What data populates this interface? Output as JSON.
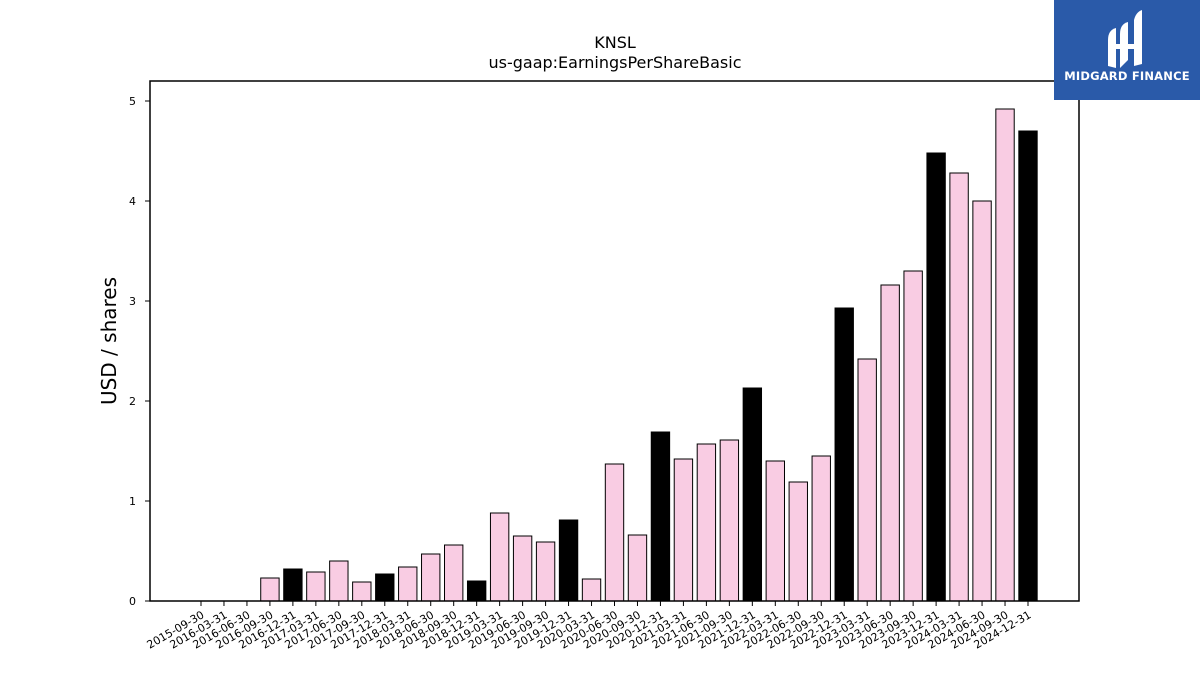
{
  "chart_data": {
    "type": "bar",
    "title": "KNSL",
    "subtitle": "us-gaap:EarningsPerShareBasic",
    "xlabel": "",
    "ylabel": "USD / shares",
    "ylim": [
      0,
      5.2
    ],
    "yticks": [
      0,
      1,
      2,
      3,
      4,
      5
    ],
    "grid": false,
    "categories": [
      "2015-09-30",
      "2016-03-31",
      "2016-06-30",
      "2016-09-30",
      "2016-12-31",
      "2017-03-31",
      "2017-06-30",
      "2017-09-30",
      "2017-12-31",
      "2018-03-31",
      "2018-06-30",
      "2018-09-30",
      "2018-12-31",
      "2019-03-31",
      "2019-06-30",
      "2019-09-30",
      "2019-12-31",
      "2020-03-31",
      "2020-06-30",
      "2020-09-30",
      "2020-12-31",
      "2021-03-31",
      "2021-06-30",
      "2021-09-30",
      "2021-12-31",
      "2022-03-31",
      "2022-06-30",
      "2022-09-30",
      "2022-12-31",
      "2023-03-31",
      "2023-06-30",
      "2023-09-30",
      "2023-12-31",
      "2024-03-31",
      "2024-06-30",
      "2024-09-30",
      "2024-12-31"
    ],
    "values": [
      0,
      0,
      0,
      0.23,
      0.32,
      0.29,
      0.4,
      0.19,
      0.27,
      0.34,
      0.47,
      0.56,
      0.2,
      0.88,
      0.65,
      0.59,
      0.81,
      0.22,
      1.37,
      0.66,
      1.69,
      1.42,
      1.57,
      1.61,
      2.13,
      1.4,
      1.19,
      1.45,
      2.93,
      2.42,
      3.16,
      3.3,
      4.48,
      4.28,
      4.0,
      4.92,
      4.7
    ],
    "annual": [
      false,
      false,
      false,
      false,
      true,
      false,
      false,
      false,
      true,
      false,
      false,
      false,
      true,
      false,
      false,
      false,
      true,
      false,
      false,
      false,
      true,
      false,
      false,
      false,
      true,
      false,
      false,
      false,
      true,
      false,
      false,
      false,
      true,
      false,
      false,
      false,
      true
    ],
    "colors": {
      "quarterly": "#f9cce3",
      "annual": "#000000",
      "edge": "#000000"
    }
  },
  "logo": {
    "text": "MIDGARD FINANCE",
    "background": "#2a5aa9"
  }
}
